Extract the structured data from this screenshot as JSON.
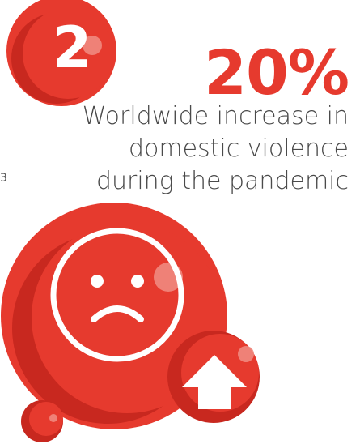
{
  "step": {
    "number": "2"
  },
  "stat": {
    "value": "20%",
    "description": "Worldwide increase in domestic violence during the pandemic"
  },
  "stray_mark": "3",
  "icons": {
    "sad_face": "sad-face-icon",
    "arrow_up": "arrow-up-icon"
  },
  "colors": {
    "accent_red": "#e63a2e",
    "dark_red": "#c8281f",
    "text_gray": "#4a4a4a"
  }
}
